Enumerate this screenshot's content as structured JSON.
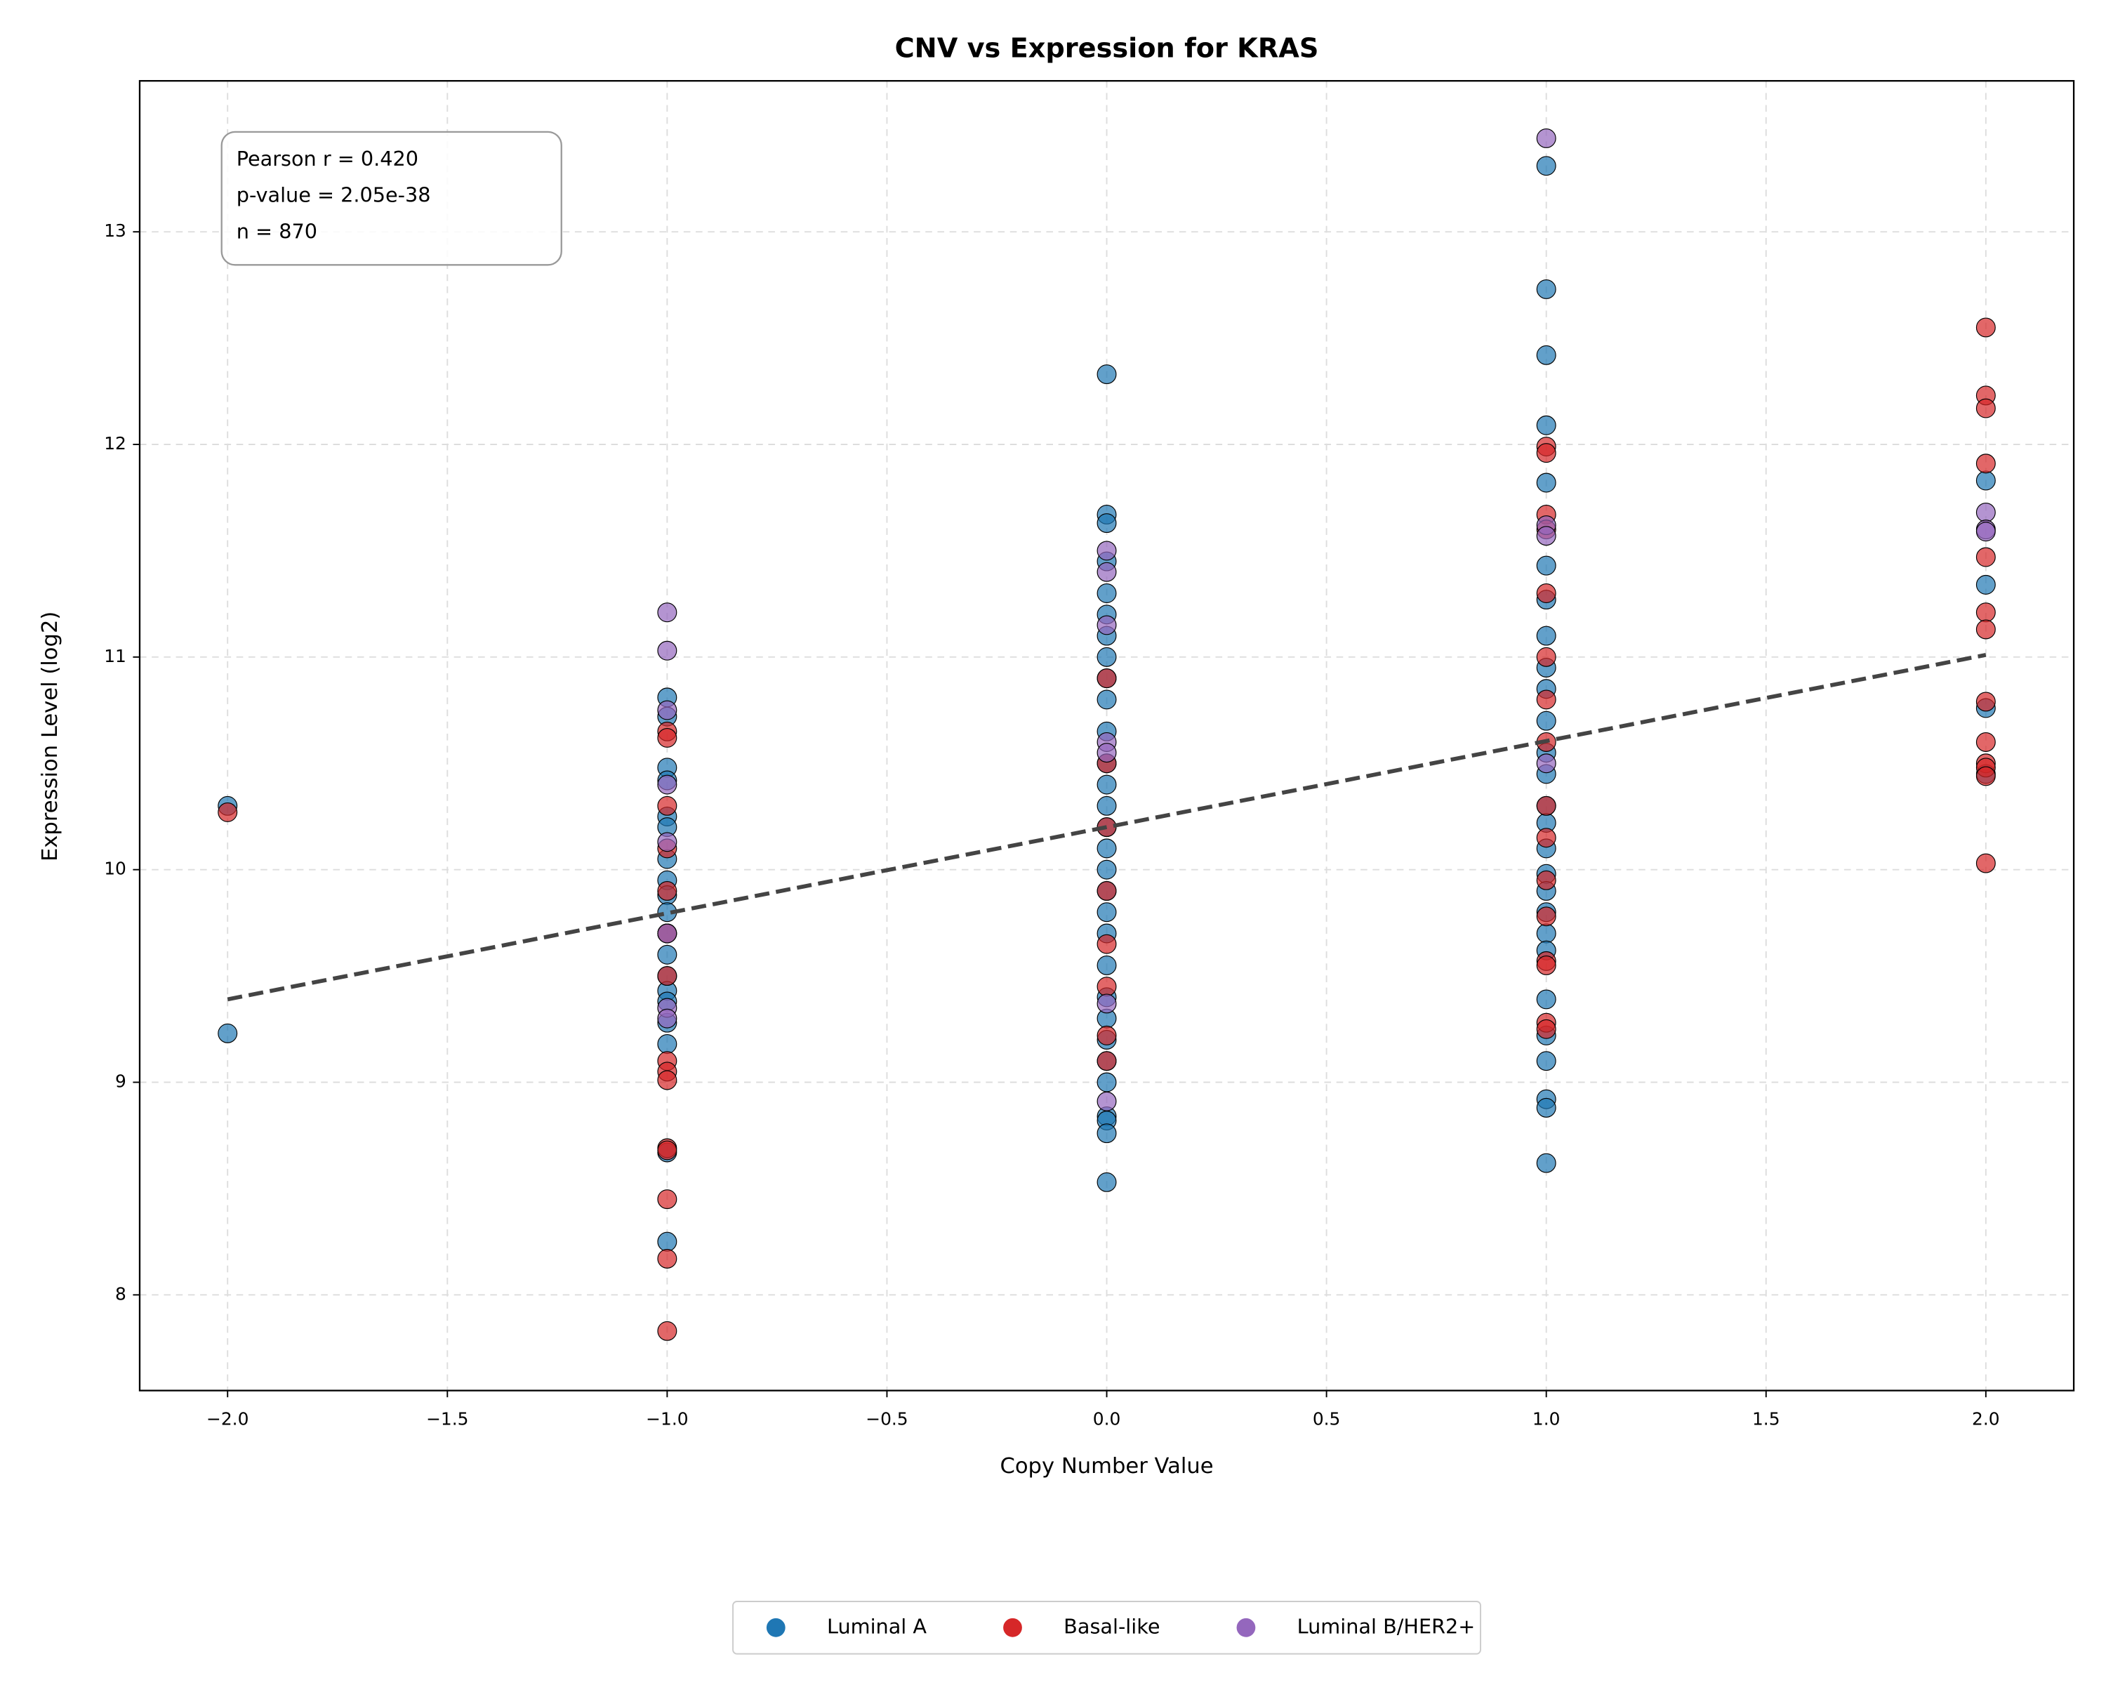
{
  "chart_data": {
    "type": "scatter",
    "title": "CNV vs Expression for KRAS",
    "x_label": "Copy Number Value",
    "y_label": "Expression Level (log2)",
    "annotation": [
      "Pearson r = 0.420",
      "p-value = 2.05e-38",
      "n = 870"
    ],
    "xlim": [
      -2.2,
      2.2
    ],
    "ylim": [
      7.55,
      13.71
    ],
    "xticks": [
      {
        "value": -2,
        "label": "−2.0"
      },
      {
        "value": -1.5,
        "label": "−1.5"
      },
      {
        "value": -1,
        "label": "−1.0"
      },
      {
        "value": -0.5,
        "label": "−0.5"
      },
      {
        "value": 0,
        "label": "0.0"
      },
      {
        "value": 0.5,
        "label": "0.5"
      },
      {
        "value": 1,
        "label": "1.0"
      },
      {
        "value": 1.5,
        "label": "1.5"
      },
      {
        "value": 2,
        "label": "2.0"
      }
    ],
    "yticks": [
      8,
      9,
      10,
      11,
      12,
      13
    ],
    "grid": true,
    "legend": "lower center",
    "series": [
      {
        "name": "Luminal A",
        "color": "#1f77b4",
        "x": [
          -2,
          -2,
          -1,
          -1,
          -1,
          -1,
          -1,
          -1,
          -1,
          -1,
          -1,
          -1,
          -1,
          -1,
          -1,
          -1,
          -1,
          -1,
          -1,
          -1,
          -1,
          0,
          0,
          0,
          0,
          0,
          0,
          0,
          0,
          0,
          0,
          0,
          0,
          0,
          0,
          0,
          0,
          0,
          0,
          0,
          0,
          0,
          0,
          0,
          0,
          0,
          0,
          0,
          0,
          0,
          0,
          1,
          1,
          1,
          1,
          1,
          1,
          1,
          1,
          1,
          1,
          1,
          1,
          1,
          1,
          1,
          1,
          1,
          1,
          1,
          1,
          1,
          1,
          1,
          1,
          1,
          1,
          1,
          2,
          2,
          2,
          2
        ],
        "y": [
          10.3,
          9.23,
          10.81,
          10.72,
          10.48,
          10.42,
          10.25,
          10.2,
          10.05,
          9.95,
          9.88,
          9.8,
          9.7,
          9.6,
          9.5,
          9.43,
          9.38,
          9.28,
          9.18,
          8.67,
          8.25,
          12.33,
          11.67,
          11.63,
          11.45,
          11.3,
          11.2,
          11.1,
          11.0,
          10.9,
          10.8,
          10.65,
          10.5,
          10.4,
          10.3,
          10.2,
          10.1,
          10.0,
          9.9,
          9.8,
          9.7,
          9.55,
          9.4,
          9.3,
          9.2,
          9.1,
          9.0,
          8.84,
          8.82,
          8.76,
          8.53,
          13.31,
          12.73,
          12.42,
          12.09,
          11.82,
          11.43,
          11.27,
          11.1,
          10.95,
          10.85,
          10.7,
          10.55,
          10.45,
          10.3,
          10.22,
          10.1,
          9.98,
          9.9,
          9.8,
          9.7,
          9.62,
          9.39,
          9.22,
          9.1,
          8.92,
          8.88,
          8.62,
          11.83,
          11.34,
          10.76,
          10.45
        ]
      },
      {
        "name": "Basal-like",
        "color": "#d62728",
        "x": [
          -2,
          -1,
          -1,
          -1,
          -1,
          -1,
          -1,
          -1,
          -1,
          -1,
          -1,
          -1,
          -1,
          -1,
          -1,
          -1,
          0,
          0,
          0,
          0,
          0,
          0,
          0,
          0,
          1,
          1,
          1,
          1,
          1,
          1,
          1,
          1,
          1,
          1,
          1,
          1,
          1,
          1,
          1,
          1,
          2,
          2,
          2,
          2,
          2,
          2,
          2,
          2,
          2,
          2,
          2,
          2,
          2
        ],
        "y": [
          10.27,
          10.65,
          10.62,
          10.3,
          10.1,
          9.9,
          9.7,
          9.5,
          9.1,
          9.05,
          9.01,
          8.69,
          8.68,
          8.45,
          8.17,
          7.83,
          10.9,
          10.5,
          10.2,
          9.9,
          9.65,
          9.45,
          9.22,
          9.1,
          11.99,
          11.96,
          11.67,
          11.6,
          11.3,
          11.0,
          10.8,
          10.6,
          10.3,
          10.15,
          9.95,
          9.78,
          9.57,
          9.55,
          9.28,
          9.25,
          12.55,
          12.23,
          12.17,
          11.91,
          11.47,
          11.21,
          11.13,
          10.79,
          10.6,
          10.5,
          10.48,
          10.44,
          10.03
        ]
      },
      {
        "name": "Luminal B/HER2+",
        "color": "#9467bd",
        "x": [
          -1,
          -1,
          -1,
          -1,
          -1,
          -1,
          -1,
          -1,
          0,
          0,
          0,
          0,
          0,
          0,
          0,
          1,
          1,
          1,
          1,
          2,
          2,
          2
        ],
        "y": [
          11.21,
          11.03,
          10.75,
          10.4,
          10.13,
          9.7,
          9.35,
          9.3,
          11.5,
          11.4,
          11.15,
          10.6,
          10.55,
          9.37,
          8.91,
          13.44,
          11.62,
          11.57,
          10.5,
          11.68,
          11.6,
          11.59
        ]
      }
    ],
    "trend": {
      "x": [
        -2,
        2
      ],
      "y": [
        9.39,
        11.01
      ],
      "color": "#444444"
    }
  }
}
